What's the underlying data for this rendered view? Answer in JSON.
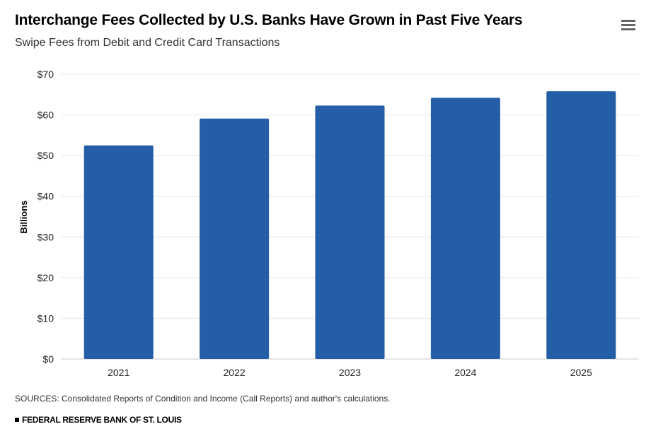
{
  "header": {
    "title": "Interchange Fees Collected by U.S. Banks Have Grown in Past Five Years",
    "subtitle": "Swipe Fees from Debit and Credit Card Transactions",
    "menu_icon": "hamburger-menu-icon"
  },
  "footer": {
    "source": "SOURCES: Consolidated Reports of Condition and Income (Call Reports) and author's calculations.",
    "brand": "FEDERAL RESERVE BANK OF ST. LOUIS"
  },
  "chart_data": {
    "type": "bar",
    "title": "Interchange Fees Collected by U.S. Banks Have Grown in Past Five Years",
    "subtitle": "Swipe Fees from Debit and Credit Card Transactions",
    "xlabel": "",
    "ylabel": "Billions",
    "categories": [
      "2021",
      "2022",
      "2023",
      "2024",
      "2025"
    ],
    "values": [
      52.5,
      59.1,
      62.3,
      64.2,
      65.8
    ],
    "ylim": [
      0,
      70
    ],
    "yticks": [
      0,
      10,
      20,
      30,
      40,
      50,
      60,
      70
    ],
    "ytick_labels": [
      "$0",
      "$10",
      "$20",
      "$30",
      "$40",
      "$50",
      "$60",
      "$70"
    ],
    "grid": true,
    "legend": "none",
    "bar_color": "#245ea7"
  }
}
